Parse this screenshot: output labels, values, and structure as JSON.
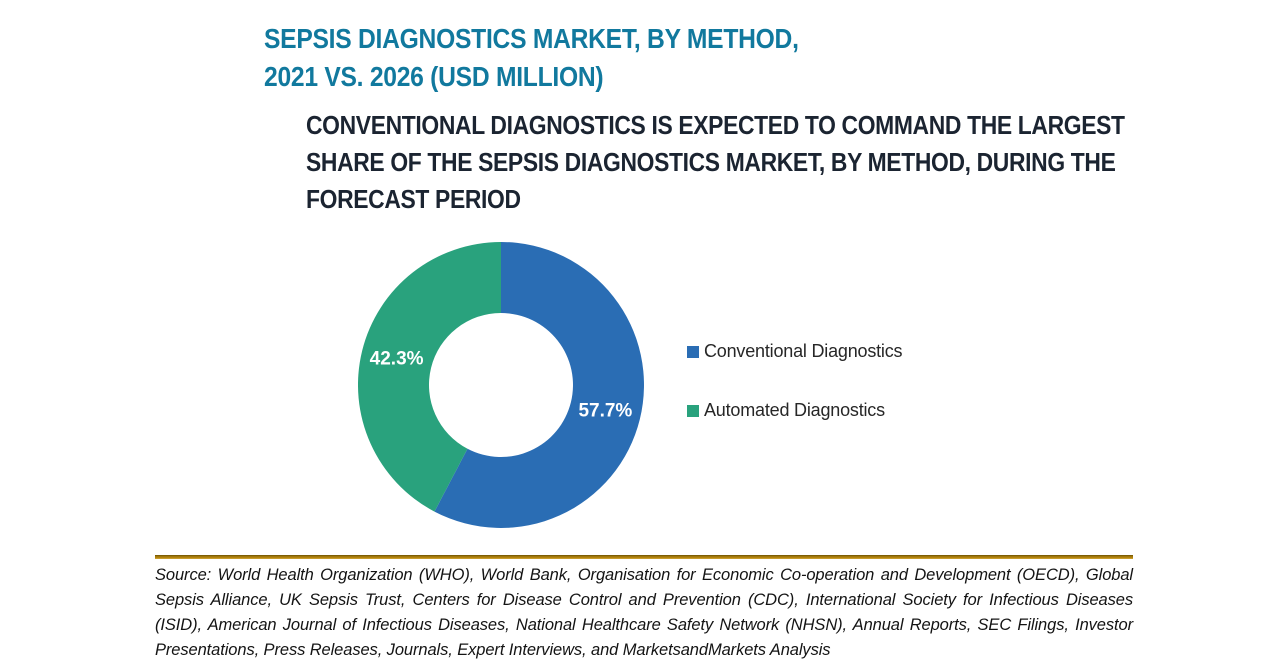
{
  "title": {
    "line1": "SEPSIS DIAGNOSTICS MARKET, BY METHOD,",
    "line2": "2021 VS. 2026 (USD MILLION)"
  },
  "subtitle": "CONVENTIONAL DIAGNOSTICS IS EXPECTED TO COMMAND THE LARGEST SHARE OF THE SEPSIS DIAGNOSTICS MARKET, BY METHOD, DURING THE FORECAST PERIOD",
  "chart_data": {
    "type": "pie",
    "subtype": "donut",
    "title": "SEPSIS DIAGNOSTICS MARKET, BY METHOD, 2021 VS. 2026 (USD MILLION)",
    "unit": "percent",
    "start_angle_deg": 0,
    "direction": "clockwise",
    "outer_radius": 143,
    "inner_radius": 72,
    "label_radius": 107.5,
    "label_color": "#ffffff",
    "legend_position": "right",
    "slices": [
      {
        "name": "Conventional Diagnostics",
        "value": 57.7,
        "label": "57.7%",
        "color": "#2a6db4"
      },
      {
        "name": "Automated Diagnostics",
        "value": 42.3,
        "label": "42.3%",
        "color": "#29a27d"
      }
    ]
  },
  "source": {
    "text": "Source: World Health Organization (WHO), World Bank, Organisation for Economic Co-operation and Development (OECD), Global Sepsis Alliance, UK Sepsis Trust, Centers for Disease Control and Prevention (CDC), International Society for Infectious Diseases (ISID), American Journal of Infectious Diseases, National Healthcare Safety Network (NHSN), Annual Reports, SEC Filings, Investor Presentations, Press Releases, Journals, Expert Interviews, and MarketsandMarkets Analysis"
  },
  "colors": {
    "title": "#11799e",
    "subtitle": "#1b2431",
    "conventional_blue": "#2a6db4",
    "automated_green": "#29a27d",
    "divider_gold": "#a97d0e",
    "percent_label": "#ffffff"
  }
}
